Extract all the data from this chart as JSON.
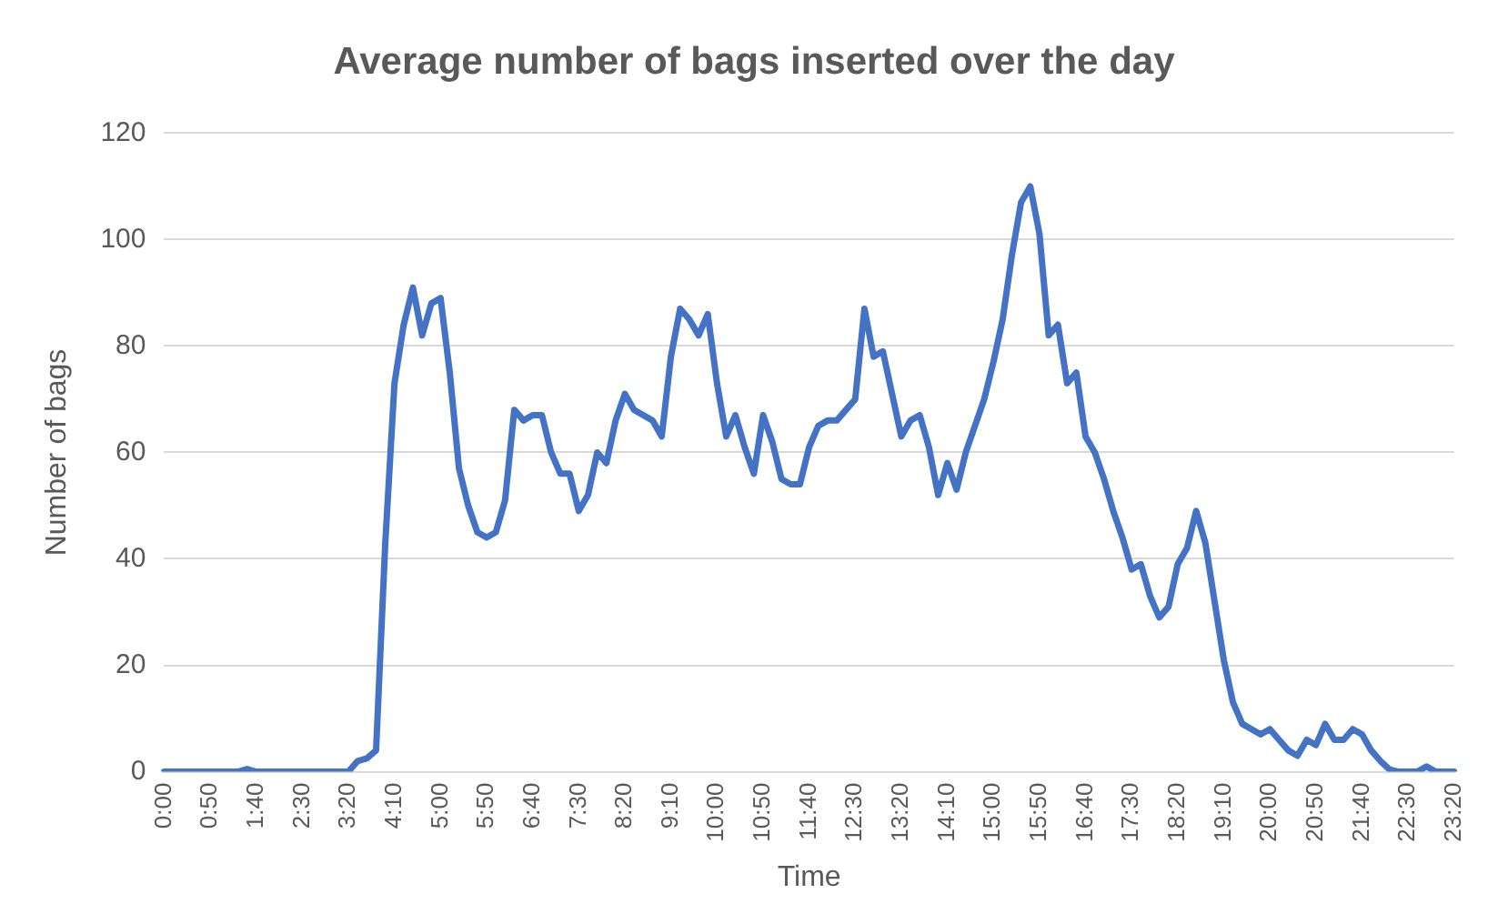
{
  "chart_data": {
    "type": "line",
    "title": "Average number of bags inserted over the day",
    "xlabel": "Time",
    "ylabel": "Number of bags",
    "categories": [
      "0:00",
      null,
      null,
      null,
      null,
      "0:50",
      null,
      null,
      null,
      null,
      "1:40",
      null,
      null,
      null,
      null,
      "2:30",
      null,
      null,
      null,
      null,
      "3:20",
      null,
      null,
      null,
      null,
      "4:10",
      null,
      null,
      null,
      null,
      "5:00",
      null,
      null,
      null,
      null,
      "5:50",
      null,
      null,
      null,
      null,
      "6:40",
      null,
      null,
      null,
      null,
      "7:30",
      null,
      null,
      null,
      null,
      "8:20",
      null,
      null,
      null,
      null,
      "9:10",
      null,
      null,
      null,
      null,
      "10:00",
      null,
      null,
      null,
      null,
      "10:50",
      null,
      null,
      null,
      null,
      "11:40",
      null,
      null,
      null,
      null,
      "12:30",
      null,
      null,
      null,
      null,
      "13:20",
      null,
      null,
      null,
      null,
      "14:10",
      null,
      null,
      null,
      null,
      "15:00",
      null,
      null,
      null,
      null,
      "15:50",
      null,
      null,
      null,
      null,
      "16:40",
      null,
      null,
      null,
      null,
      "17:30",
      null,
      null,
      null,
      null,
      "18:20",
      null,
      null,
      null,
      null,
      "19:10",
      null,
      null,
      null,
      null,
      "20:00",
      null,
      null,
      null,
      null,
      "20:50",
      null,
      null,
      null,
      null,
      "21:40",
      null,
      null,
      null,
      null,
      "22:30",
      null,
      null,
      null,
      null,
      "23:20"
    ],
    "series": [
      {
        "color": "#4472c4",
        "values": [
          0,
          0,
          0,
          0,
          0,
          0,
          0,
          0,
          0,
          0.5,
          0,
          0,
          0,
          0,
          0,
          0,
          0,
          0,
          0,
          0,
          0,
          2,
          2.5,
          4,
          43,
          73,
          84,
          91,
          82,
          88,
          89,
          75,
          57,
          50,
          45,
          44,
          45,
          51,
          68,
          66,
          67,
          67,
          60,
          56,
          56,
          49,
          52,
          60,
          58,
          66,
          71,
          68,
          67,
          66,
          63,
          78,
          87,
          85,
          82,
          86,
          73,
          63,
          67,
          61,
          56,
          67,
          62,
          55,
          54,
          54,
          61,
          65,
          66,
          66,
          68,
          70,
          87,
          78,
          79,
          71,
          63,
          66,
          67,
          61,
          52,
          58,
          53,
          60,
          65,
          70,
          77,
          85,
          97,
          107,
          110,
          101,
          82,
          84,
          73,
          75,
          63,
          60,
          55,
          49,
          44,
          38,
          39,
          33,
          29,
          31,
          39,
          42,
          49,
          43,
          32,
          21,
          13,
          9,
          8,
          7,
          8,
          6,
          4,
          3,
          6,
          5,
          9,
          6,
          6,
          8,
          7,
          4,
          2,
          0.4,
          0,
          0,
          0,
          1,
          0,
          0,
          0
        ]
      }
    ],
    "ylim": [
      0,
      120
    ],
    "yticks": [
      0,
      20,
      40,
      60,
      80,
      100,
      120
    ],
    "grid": "y",
    "legend": false,
    "marker": "none",
    "line_style": "solid"
  }
}
